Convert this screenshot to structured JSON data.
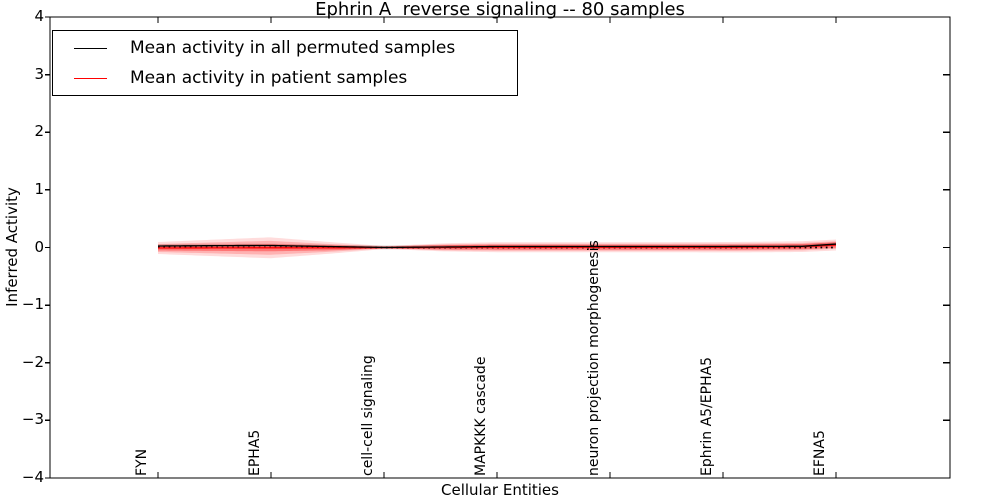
{
  "chart_data": {
    "type": "line",
    "title": "Ephrin A  reverse signaling -- 80 samples",
    "xlabel": "Cellular Entities",
    "ylabel": "Inferred Activity",
    "ylim": [
      -4,
      4
    ],
    "yticks": [
      4,
      3,
      2,
      1,
      0,
      -1,
      -2,
      -3,
      -4
    ],
    "yticklabels": [
      "4",
      "3",
      "2",
      "1",
      "0",
      "−1",
      "−2",
      "−3",
      "−4"
    ],
    "xticklabels": [
      "FYN",
      "EPHA5",
      "cell-cell signaling",
      "MAPKKK cascade",
      "neuron projection morphogenesis",
      "Ephrin A5/EPHA5",
      "EFNA5"
    ],
    "grid": false,
    "legend_position": "upper-left",
    "legend": [
      {
        "label": "Mean activity in all permuted samples",
        "color": "#000000",
        "style": "solid"
      },
      {
        "label": "Mean activity in patient samples",
        "color": "#ff0000",
        "style": "solid"
      }
    ],
    "series": [
      {
        "name": "Mean activity in all permuted samples",
        "color": "#000000",
        "style": "solid",
        "points": [
          [
            0,
            0.026
          ],
          [
            0.08,
            0.032
          ],
          [
            0.165,
            0.035
          ],
          [
            0.25,
            0.017
          ],
          [
            0.335,
            0.001
          ],
          [
            0.42,
            0.009
          ],
          [
            0.5,
            0.017
          ],
          [
            0.7,
            0.017
          ],
          [
            0.85,
            0.018
          ],
          [
            0.95,
            0.021
          ],
          [
            1,
            0.06
          ]
        ]
      },
      {
        "name": "Mean activity in patient samples",
        "color": "#ff0000",
        "style": "solid",
        "points": [
          [
            0,
            -0.009
          ],
          [
            0.165,
            -0.005
          ],
          [
            0.25,
            -0.007
          ],
          [
            0.335,
            0.0
          ],
          [
            0.5,
            0.005
          ],
          [
            0.85,
            0.005
          ],
          [
            0.95,
            0.015
          ],
          [
            1,
            0.043
          ]
        ]
      },
      {
        "name": "zero-baseline",
        "color": "#000000",
        "style": "dotted",
        "points": [
          [
            0,
            0.0
          ],
          [
            1,
            0.0
          ]
        ]
      }
    ],
    "bands": [
      {
        "name": "permuted-std-band",
        "color": "#999999",
        "alpha": 0.45,
        "center_series": 0,
        "half_widths": [
          [
            0,
            0.031
          ],
          [
            1,
            0.031
          ]
        ]
      },
      {
        "name": "patient-band-outer",
        "color": "#ff3b3b",
        "alpha": 0.18,
        "center_series": 1,
        "half_widths": [
          [
            0,
            0.104
          ],
          [
            0.165,
            0.182
          ],
          [
            0.25,
            0.104
          ],
          [
            0.335,
            0.026
          ],
          [
            0.42,
            0.069
          ],
          [
            0.5,
            0.087
          ],
          [
            0.75,
            0.087
          ],
          [
            1,
            0.095
          ]
        ]
      },
      {
        "name": "patient-band-mid",
        "color": "#ff3b3b",
        "alpha": 0.26,
        "center_series": 1,
        "half_widths": [
          [
            0,
            0.069
          ],
          [
            0.165,
            0.121
          ],
          [
            0.25,
            0.069
          ],
          [
            0.335,
            0.017
          ],
          [
            0.42,
            0.052
          ],
          [
            0.5,
            0.061
          ],
          [
            0.75,
            0.061
          ],
          [
            1,
            0.066
          ]
        ]
      },
      {
        "name": "patient-band-inner",
        "color": "#ff2222",
        "alpha": 0.42,
        "center_series": 1,
        "half_widths": [
          [
            0,
            0.043
          ],
          [
            0.165,
            0.061
          ],
          [
            0.25,
            0.043
          ],
          [
            0.335,
            0.014
          ],
          [
            0.42,
            0.038
          ],
          [
            0.5,
            0.043
          ],
          [
            0.75,
            0.043
          ],
          [
            1,
            0.047
          ]
        ]
      }
    ]
  }
}
